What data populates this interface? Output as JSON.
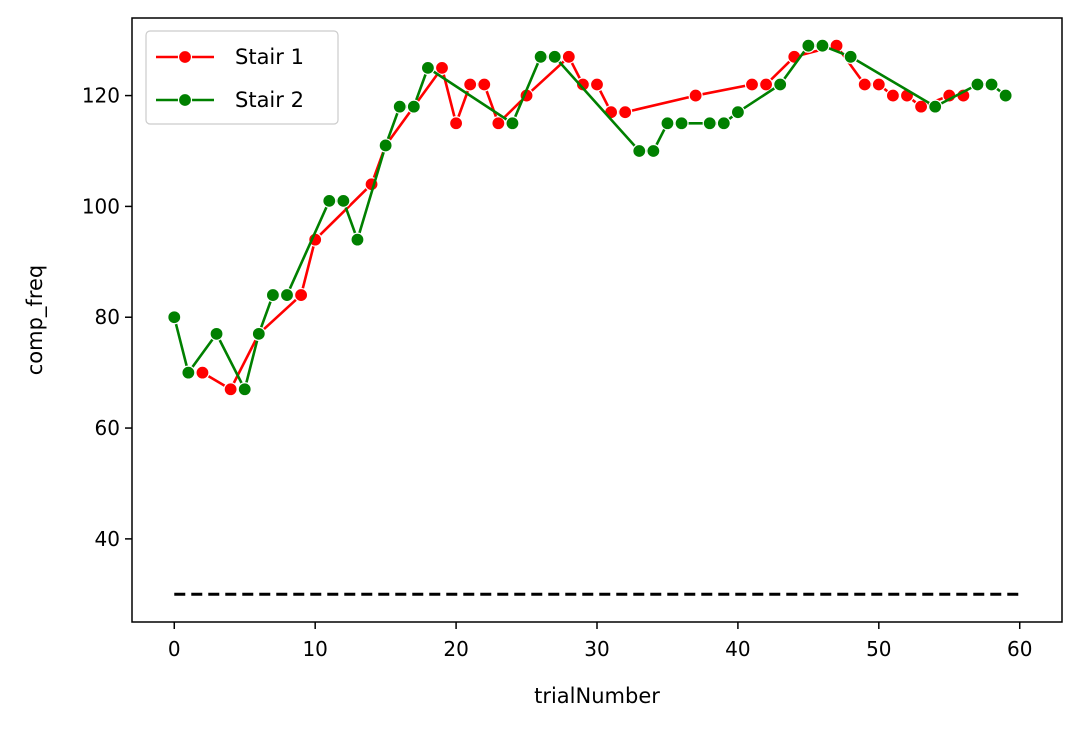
{
  "chart_data": {
    "type": "line",
    "title": "",
    "xlabel": "trialNumber",
    "ylabel": "comp_freq",
    "xlim": [
      -3,
      63
    ],
    "ylim": [
      25,
      134
    ],
    "xticks": [
      0,
      10,
      20,
      30,
      40,
      50,
      60
    ],
    "yticks": [
      40,
      60,
      80,
      100,
      120
    ],
    "grid": false,
    "legend_position": "top-left",
    "series": [
      {
        "name": "Stair 1",
        "color": "#ff0000",
        "marker": "circle",
        "x": [
          2,
          4,
          6,
          9,
          10,
          14,
          15,
          19,
          20,
          21,
          22,
          23,
          25,
          28,
          29,
          30,
          31,
          32,
          37,
          41,
          42,
          44,
          47,
          49,
          50,
          51,
          52,
          53,
          55,
          56
        ],
        "y": [
          70,
          67,
          77,
          84,
          94,
          104,
          111,
          125,
          115,
          122,
          122,
          115,
          120,
          127,
          122,
          122,
          117,
          117,
          120,
          122,
          122,
          127,
          129,
          122,
          122,
          120,
          120,
          118,
          120,
          120
        ]
      },
      {
        "name": "Stair 2",
        "color": "#008000",
        "marker": "circle",
        "x": [
          0,
          1,
          3,
          5,
          6,
          7,
          8,
          11,
          12,
          13,
          15,
          16,
          17,
          18,
          24,
          26,
          27,
          33,
          34,
          35,
          36,
          38,
          39,
          40,
          43,
          45,
          46,
          48,
          54,
          57,
          58,
          59
        ],
        "y": [
          80,
          70,
          77,
          67,
          77,
          84,
          84,
          101,
          101,
          94,
          111,
          118,
          118,
          125,
          115,
          127,
          127,
          110,
          110,
          115,
          115,
          115,
          115,
          117,
          122,
          129,
          129,
          127,
          118,
          122,
          122,
          120
        ]
      }
    ],
    "reference_line": {
      "x": [
        0,
        60
      ],
      "y": 30,
      "color": "#000000",
      "style": "dashed"
    }
  }
}
